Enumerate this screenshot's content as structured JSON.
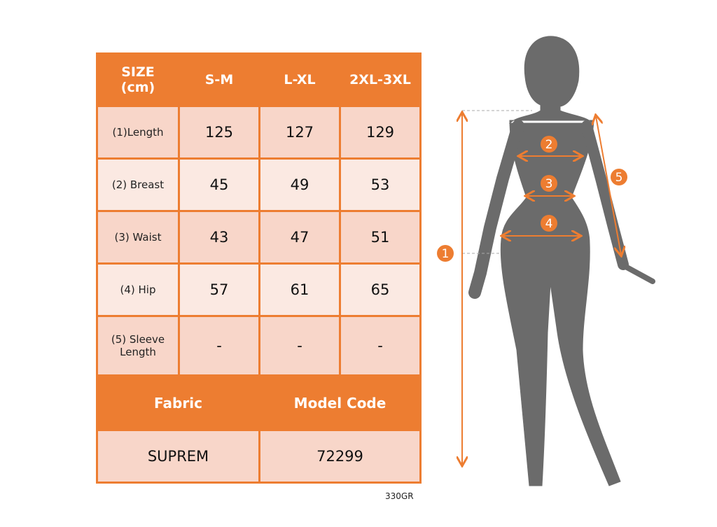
{
  "table": {
    "header": [
      "SIZE\n(cm)",
      "S-M",
      "L-XL",
      "2XL-3XL"
    ],
    "header_line1": "SIZE",
    "header_line2": "(cm)",
    "rows": [
      {
        "label": "(1)Length",
        "values": [
          "125",
          "127",
          "129"
        ]
      },
      {
        "label": "(2) Breast",
        "values": [
          "45",
          "49",
          "53"
        ]
      },
      {
        "label": "(3) Waist",
        "values": [
          "43",
          "47",
          "51"
        ]
      },
      {
        "label": "(4) Hip",
        "values": [
          "57",
          "61",
          "65"
        ]
      },
      {
        "label_line1": "(5) Sleeve",
        "label_line2": "Length",
        "values": [
          "-",
          "-",
          "-"
        ]
      }
    ],
    "fabric_label": "Fabric",
    "model_code_label": "Model Code",
    "fabric_value": "SUPREM",
    "model_code_value": "72299"
  },
  "code": "330GR",
  "figure": {
    "markers": [
      "1",
      "2",
      "3",
      "4",
      "5"
    ],
    "accent_color": "#ED7D31",
    "silhouette_color": "#6B6B6B"
  }
}
